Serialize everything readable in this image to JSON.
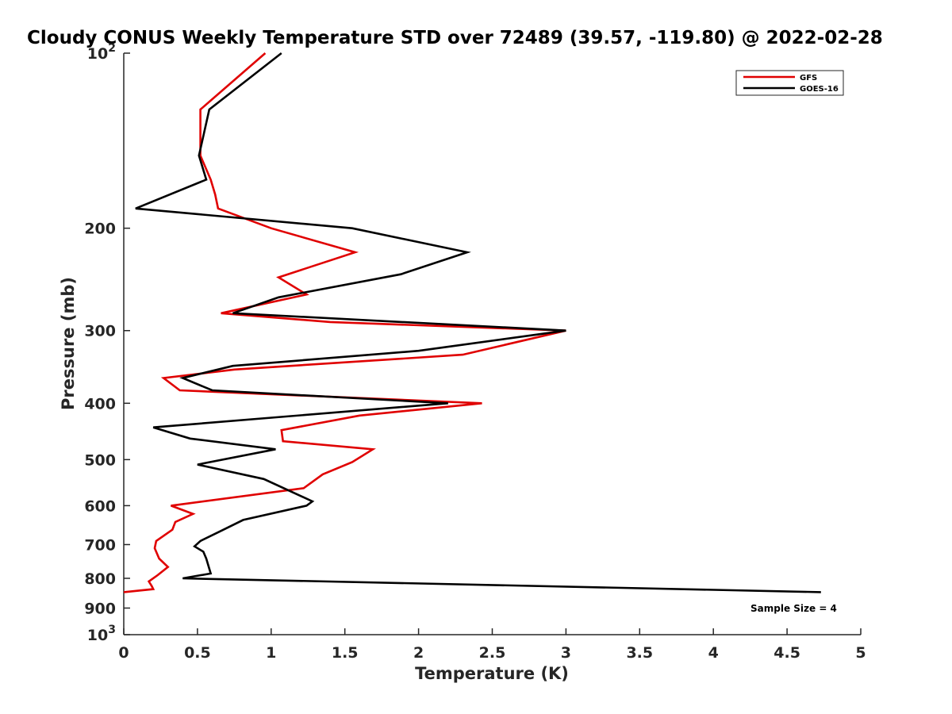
{
  "chart_data": {
    "type": "line",
    "title": "Cloudy CONUS Weekly Temperature STD over 72489 (39.57, -119.80) @ 2022-02-28",
    "xlabel": "Temperature (K)",
    "ylabel": "Pressure (mb)",
    "xlim": [
      0,
      5
    ],
    "ylim": [
      100,
      1000
    ],
    "y_scale": "log",
    "y_reversed": true,
    "x_ticks": [
      {
        "value": 0,
        "label": "0"
      },
      {
        "value": 0.5,
        "label": "0.5"
      },
      {
        "value": 1,
        "label": "1"
      },
      {
        "value": 1.5,
        "label": "1.5"
      },
      {
        "value": 2,
        "label": "2"
      },
      {
        "value": 2.5,
        "label": "2.5"
      },
      {
        "value": 3,
        "label": "3"
      },
      {
        "value": 3.5,
        "label": "3.5"
      },
      {
        "value": 4,
        "label": "4"
      },
      {
        "value": 4.5,
        "label": "4.5"
      },
      {
        "value": 5,
        "label": "5"
      }
    ],
    "y_ticks": [
      {
        "value": 100,
        "base": "10",
        "exp": "2"
      },
      {
        "value": 200,
        "label": "200"
      },
      {
        "value": 300,
        "label": "300"
      },
      {
        "value": 400,
        "label": "400"
      },
      {
        "value": 500,
        "label": "500"
      },
      {
        "value": 600,
        "label": "600"
      },
      {
        "value": 700,
        "label": "700"
      },
      {
        "value": 800,
        "label": "800"
      },
      {
        "value": 900,
        "label": "900"
      },
      {
        "value": 1000,
        "base": "10",
        "exp": "3"
      }
    ],
    "grid": false,
    "legend_position": "top-right",
    "series": [
      {
        "name": "GFS",
        "color": "#e00000",
        "points": [
          [
            0.96,
            100
          ],
          [
            0.52,
            125
          ],
          [
            0.52,
            150
          ],
          [
            0.59,
            165
          ],
          [
            0.62,
            175
          ],
          [
            0.64,
            185
          ],
          [
            1.0,
            200
          ],
          [
            1.57,
            220
          ],
          [
            1.05,
            243
          ],
          [
            1.24,
            260
          ],
          [
            0.66,
            280
          ],
          [
            1.4,
            290
          ],
          [
            3.0,
            300
          ],
          [
            2.3,
            330
          ],
          [
            0.75,
            350
          ],
          [
            0.27,
            362
          ],
          [
            0.38,
            380
          ],
          [
            2.43,
            400
          ],
          [
            1.6,
            420
          ],
          [
            1.07,
            445
          ],
          [
            1.08,
            465
          ],
          [
            1.69,
            480
          ],
          [
            1.55,
            505
          ],
          [
            1.35,
            530
          ],
          [
            1.22,
            560
          ],
          [
            0.32,
            600
          ],
          [
            0.47,
            620
          ],
          [
            0.35,
            640
          ],
          [
            0.33,
            660
          ],
          [
            0.22,
            690
          ],
          [
            0.21,
            710
          ],
          [
            0.24,
            740
          ],
          [
            0.3,
            765
          ],
          [
            0.23,
            790
          ],
          [
            0.17,
            810
          ],
          [
            0.19,
            825
          ],
          [
            0.2,
            835
          ],
          [
            0.0,
            845
          ]
        ]
      },
      {
        "name": "GOES-16",
        "color": "#000000",
        "points": [
          [
            1.07,
            100
          ],
          [
            0.58,
            125
          ],
          [
            0.51,
            150
          ],
          [
            0.56,
            165
          ],
          [
            0.08,
            185
          ],
          [
            1.55,
            200
          ],
          [
            2.33,
            220
          ],
          [
            1.88,
            240
          ],
          [
            1.05,
            263
          ],
          [
            0.74,
            280
          ],
          [
            3.0,
            300
          ],
          [
            2.0,
            325
          ],
          [
            0.74,
            345
          ],
          [
            0.4,
            362
          ],
          [
            0.6,
            380
          ],
          [
            2.2,
            400
          ],
          [
            0.2,
            440
          ],
          [
            0.45,
            460
          ],
          [
            1.03,
            480
          ],
          [
            0.5,
            510
          ],
          [
            0.95,
            540
          ],
          [
            1.28,
            590
          ],
          [
            1.24,
            600
          ],
          [
            0.81,
            635
          ],
          [
            0.65,
            665
          ],
          [
            0.52,
            690
          ],
          [
            0.48,
            705
          ],
          [
            0.54,
            720
          ],
          [
            0.56,
            740
          ],
          [
            0.59,
            785
          ],
          [
            0.4,
            800
          ],
          [
            4.73,
            845
          ]
        ]
      }
    ],
    "annotation": "Sample Size = 4"
  }
}
